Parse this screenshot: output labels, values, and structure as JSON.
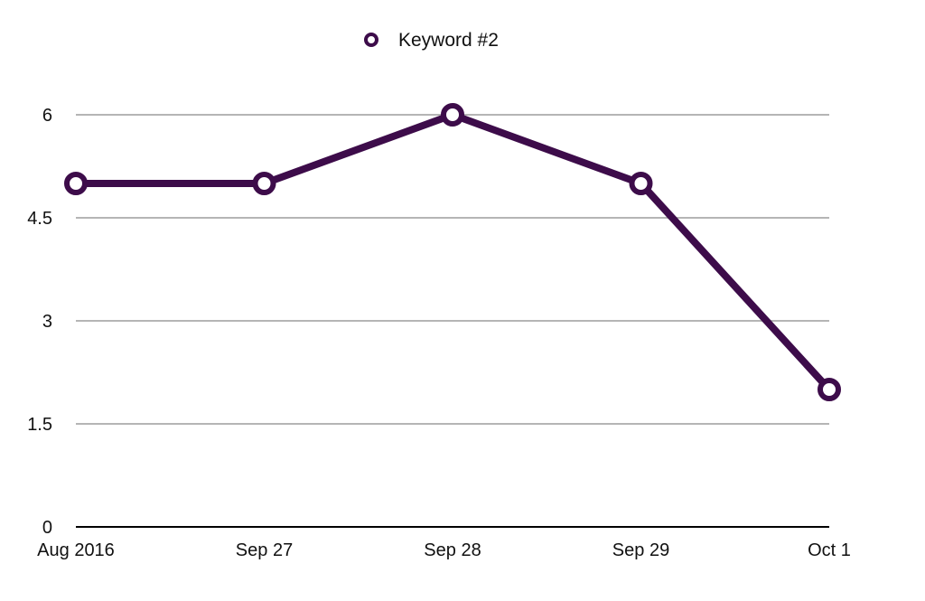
{
  "chart_data": {
    "type": "line",
    "categories": [
      "Aug 2016",
      "Sep 27",
      "Sep 28",
      "Sep 29",
      "Oct 1"
    ],
    "series": [
      {
        "name": "Keyword #2",
        "values": [
          5,
          5,
          6,
          5,
          2
        ],
        "color": "#3d0c4a"
      }
    ],
    "yticks": [
      "0",
      "1.5",
      "3",
      "4.5",
      "6"
    ],
    "ylim": [
      0,
      6
    ],
    "grid": true,
    "legend": "top-center",
    "title": "",
    "xlabel": "",
    "ylabel": ""
  }
}
